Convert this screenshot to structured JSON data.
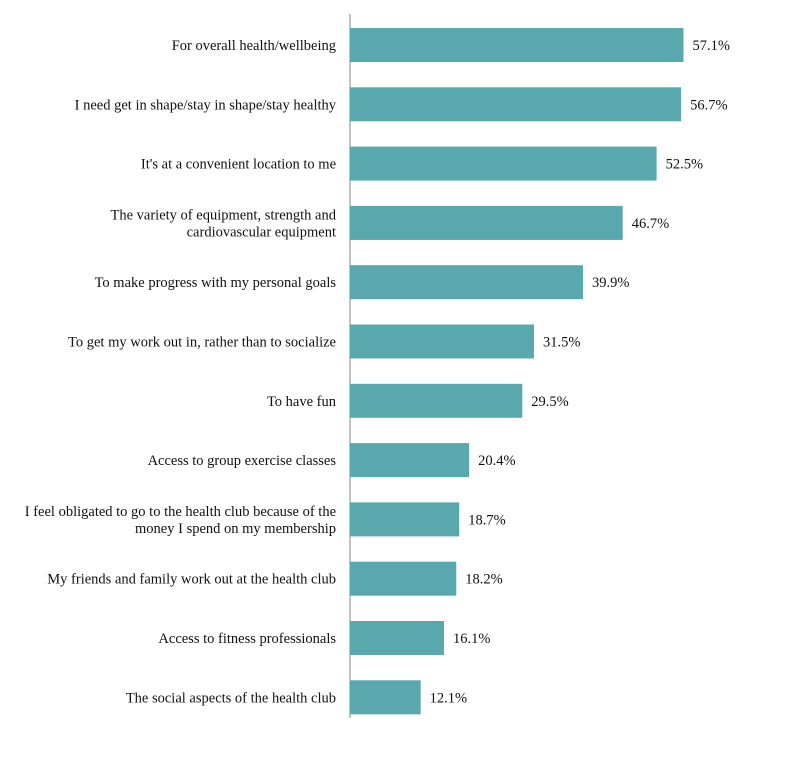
{
  "chart_data": {
    "type": "bar",
    "orientation": "horizontal",
    "title": "",
    "xlabel": "",
    "ylabel": "",
    "categories": [
      [
        "For overall health/wellbeing"
      ],
      [
        "I need get in shape/stay in shape/stay healthy"
      ],
      [
        "It's at a convenient location to me"
      ],
      [
        "The variety of equipment, strength and",
        "cardiovascular equipment"
      ],
      [
        "To make progress with my personal goals"
      ],
      [
        "To get my work out in, rather than to socialize"
      ],
      [
        "To have fun"
      ],
      [
        "Access to group exercise classes"
      ],
      [
        "I feel obligated to go to the health club because of the",
        "money I spend on my membership"
      ],
      [
        "My friends and family work out at the health club"
      ],
      [
        "Access to fitness professionals"
      ],
      [
        "The social aspects of the health club"
      ]
    ],
    "values": [
      57.1,
      56.7,
      52.5,
      46.7,
      39.9,
      31.5,
      29.5,
      20.4,
      18.7,
      18.2,
      16.1,
      12.1
    ],
    "data_labels": [
      "57.1%",
      "56.7%",
      "52.5%",
      "46.7%",
      "39.9%",
      "31.5%",
      "29.5%",
      "20.4%",
      "18.7%",
      "18.2%",
      "16.1%",
      "12.1%"
    ],
    "xlim": [
      0,
      60
    ],
    "grid": false,
    "legend": "none",
    "bar_color": "#58a8ae",
    "axis_color": "#999999"
  }
}
